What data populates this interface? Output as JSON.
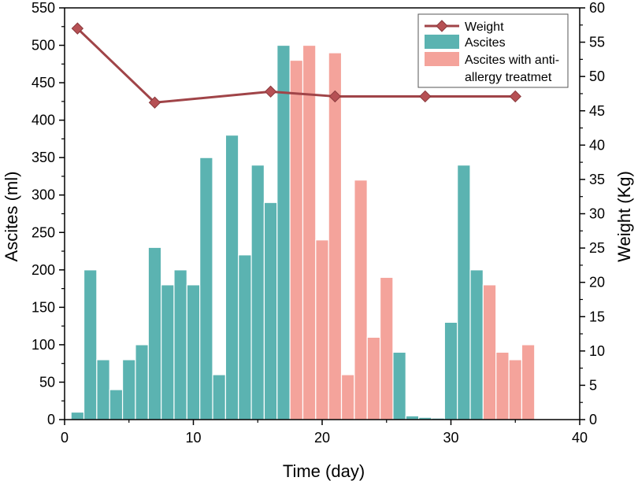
{
  "chart_data": {
    "type": "bar",
    "title": "",
    "xlabel": "Time (day)",
    "ylabel": "Ascites (ml)",
    "y2label": "Weight (Kg)",
    "xlim": [
      0,
      40
    ],
    "ylim": [
      0,
      550
    ],
    "y2lim": [
      0,
      60
    ],
    "x_ticks": [
      0,
      10,
      20,
      30,
      40
    ],
    "y_ticks": [
      0,
      50,
      100,
      150,
      200,
      250,
      300,
      350,
      400,
      450,
      500,
      550
    ],
    "y2_ticks": [
      0,
      5,
      10,
      15,
      20,
      25,
      30,
      35,
      40,
      45,
      50,
      55,
      60
    ],
    "grid": false,
    "legend_position": "top-right",
    "colors": {
      "weight": "#a04448",
      "weight_marker": "#b65054",
      "ascites": "#5bb3b1",
      "ascites_anti_allergy": "#f4a39b"
    },
    "series": [
      {
        "name": "Ascites",
        "kind": "bar",
        "axis": "left",
        "x": [
          1,
          2,
          3,
          4,
          5,
          6,
          7,
          8,
          9,
          10,
          11,
          12,
          13,
          14,
          15,
          16,
          17,
          26,
          27,
          28,
          29,
          30,
          31,
          32
        ],
        "values": [
          10,
          200,
          80,
          40,
          80,
          100,
          230,
          180,
          200,
          180,
          350,
          60,
          380,
          220,
          340,
          290,
          500,
          90,
          5,
          3,
          2,
          130,
          340,
          200
        ]
      },
      {
        "name": "Ascites with anti-allergy treatmet",
        "kind": "bar",
        "axis": "left",
        "x": [
          18,
          19,
          20,
          21,
          22,
          23,
          24,
          25,
          33,
          34,
          35,
          36
        ],
        "values": [
          480,
          500,
          240,
          490,
          60,
          320,
          110,
          190,
          180,
          90,
          80,
          100
        ]
      },
      {
        "name": "Weight",
        "kind": "line",
        "axis": "right",
        "x": [
          1,
          7,
          16,
          21,
          28,
          35
        ],
        "values": [
          57,
          46.2,
          47.8,
          47.1,
          47.1,
          47.1
        ]
      }
    ],
    "legend": [
      {
        "label": "Weight",
        "symbol": "line-diamond"
      },
      {
        "label": "Ascites",
        "symbol": "bar"
      },
      {
        "label_lines": [
          "Ascites with anti-",
          "allergy treatmet"
        ],
        "symbol": "bar"
      }
    ]
  }
}
